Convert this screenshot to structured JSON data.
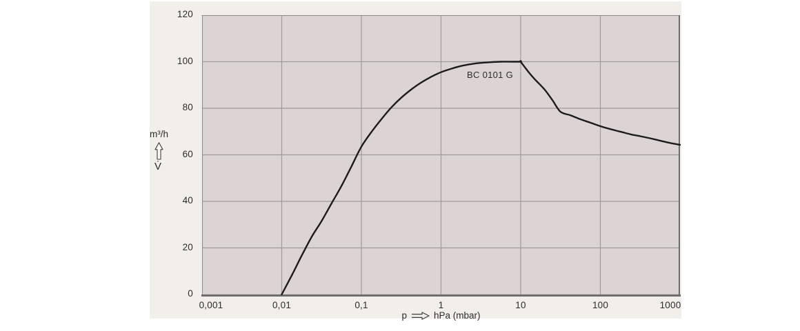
{
  "figure": {
    "curve_label": "BC 0101 G",
    "y_unit_label": "m³/h",
    "y_symbol": "V̇",
    "x_prefix": "p",
    "x_unit": "hPa (mbar)",
    "colors": {
      "panel_bg": "#f1efea",
      "plot_bg": "#dcd4d4",
      "grid": "#9f9b9b",
      "border": "#8d8989",
      "border_dark": "#6f6b6b",
      "curve": "#1b1b1b",
      "text": "#2e2b2b",
      "arrow_fill": "#fbfaf7"
    }
  },
  "chart_data": {
    "type": "line",
    "title": "",
    "xlabel": "p → hPa (mbar)",
    "ylabel": "V̇ (m³/h)",
    "x_scale": "log",
    "xlim": [
      0.001,
      1000
    ],
    "ylim": [
      0,
      120
    ],
    "grid": true,
    "legend_position": "none",
    "x_ticks": [
      {
        "value": 0.001,
        "label": "0,001"
      },
      {
        "value": 0.01,
        "label": "0,01"
      },
      {
        "value": 0.1,
        "label": "0,1"
      },
      {
        "value": 1,
        "label": "1"
      },
      {
        "value": 10,
        "label": "10"
      },
      {
        "value": 100,
        "label": "100"
      },
      {
        "value": 1000,
        "label": "1000"
      }
    ],
    "y_ticks": [
      0,
      20,
      40,
      60,
      80,
      100,
      120
    ],
    "series": [
      {
        "name": "BC 0101 G",
        "points": [
          [
            0.01,
            0
          ],
          [
            0.0135,
            8.5
          ],
          [
            0.018,
            17
          ],
          [
            0.024,
            25
          ],
          [
            0.0316,
            31.5
          ],
          [
            0.042,
            39
          ],
          [
            0.056,
            46.5
          ],
          [
            0.075,
            55
          ],
          [
            0.1,
            63.5
          ],
          [
            0.135,
            70
          ],
          [
            0.18,
            75.5
          ],
          [
            0.24,
            80.5
          ],
          [
            0.316,
            84.5
          ],
          [
            0.42,
            88
          ],
          [
            0.56,
            91
          ],
          [
            0.75,
            93.5
          ],
          [
            1,
            95.5
          ],
          [
            1.35,
            97
          ],
          [
            1.8,
            98.2
          ],
          [
            2.4,
            99
          ],
          [
            3.16,
            99.5
          ],
          [
            4.2,
            99.8
          ],
          [
            5.6,
            100
          ],
          [
            7.5,
            100
          ],
          [
            10,
            100
          ],
          [
            10,
            100
          ],
          [
            12.6,
            95.5
          ],
          [
            15,
            92.5
          ],
          [
            20,
            88
          ],
          [
            25,
            83.5
          ],
          [
            31.6,
            78.5
          ],
          [
            42,
            77
          ],
          [
            56,
            75.3
          ],
          [
            75,
            73.8
          ],
          [
            100,
            72.3
          ],
          [
            135,
            71
          ],
          [
            180,
            69.9
          ],
          [
            240,
            68.8
          ],
          [
            316,
            68
          ],
          [
            420,
            67.1
          ],
          [
            560,
            66.1
          ],
          [
            750,
            65.1
          ],
          [
            1000,
            64.3
          ]
        ]
      }
    ]
  }
}
